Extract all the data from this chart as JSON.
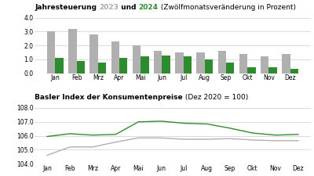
{
  "months": [
    "Jan",
    "Feb",
    "Mrz",
    "Apr",
    "Mai",
    "Jun",
    "Jul",
    "Aug",
    "Sep",
    "Okt",
    "Nov",
    "Dez"
  ],
  "bar_2023": [
    3.0,
    3.2,
    2.8,
    2.3,
    2.0,
    1.6,
    1.5,
    1.5,
    1.6,
    1.4,
    1.2,
    1.4
  ],
  "bar_2024": [
    1.1,
    0.9,
    0.75,
    1.1,
    1.2,
    1.3,
    1.2,
    1.0,
    0.8,
    0.45,
    0.45,
    0.35
  ],
  "color_2023": "#b0b0b0",
  "color_2024": "#2e8b2e",
  "index_2023": [
    104.6,
    105.2,
    105.2,
    105.55,
    105.85,
    105.85,
    105.75,
    105.75,
    105.8,
    105.7,
    105.65,
    105.65
  ],
  "index_2024": [
    105.95,
    106.15,
    106.05,
    106.1,
    107.0,
    107.05,
    106.9,
    106.85,
    106.55,
    106.2,
    106.05,
    106.1
  ],
  "color_line_2023": "#b0b0b0",
  "color_line_2024": "#2e8b2e",
  "bar_ylim": [
    0,
    4.0
  ],
  "bar_yticks": [
    0.0,
    1.0,
    2.0,
    3.0,
    4.0
  ],
  "index_ylim": [
    104.0,
    108.0
  ],
  "index_yticks": [
    104.0,
    105.0,
    106.0,
    107.0,
    108.0
  ],
  "title_top_bold": "Jahresteuerung ",
  "title_year2023": "2023",
  "title_und": " und ",
  "title_year2024": "2024",
  "title_rest": " (Zwölfmonatsveränderung in Prozent)",
  "title_bottom_bold": "Basler Index der Konsumentenpreise",
  "title_bottom_rest": " (Dez 2020 = 100)",
  "bg_color": "#ffffff",
  "grid_color": "#cccccc",
  "color_2023_label": "#aaaaaa",
  "color_2024_label": "#2e8b2e"
}
